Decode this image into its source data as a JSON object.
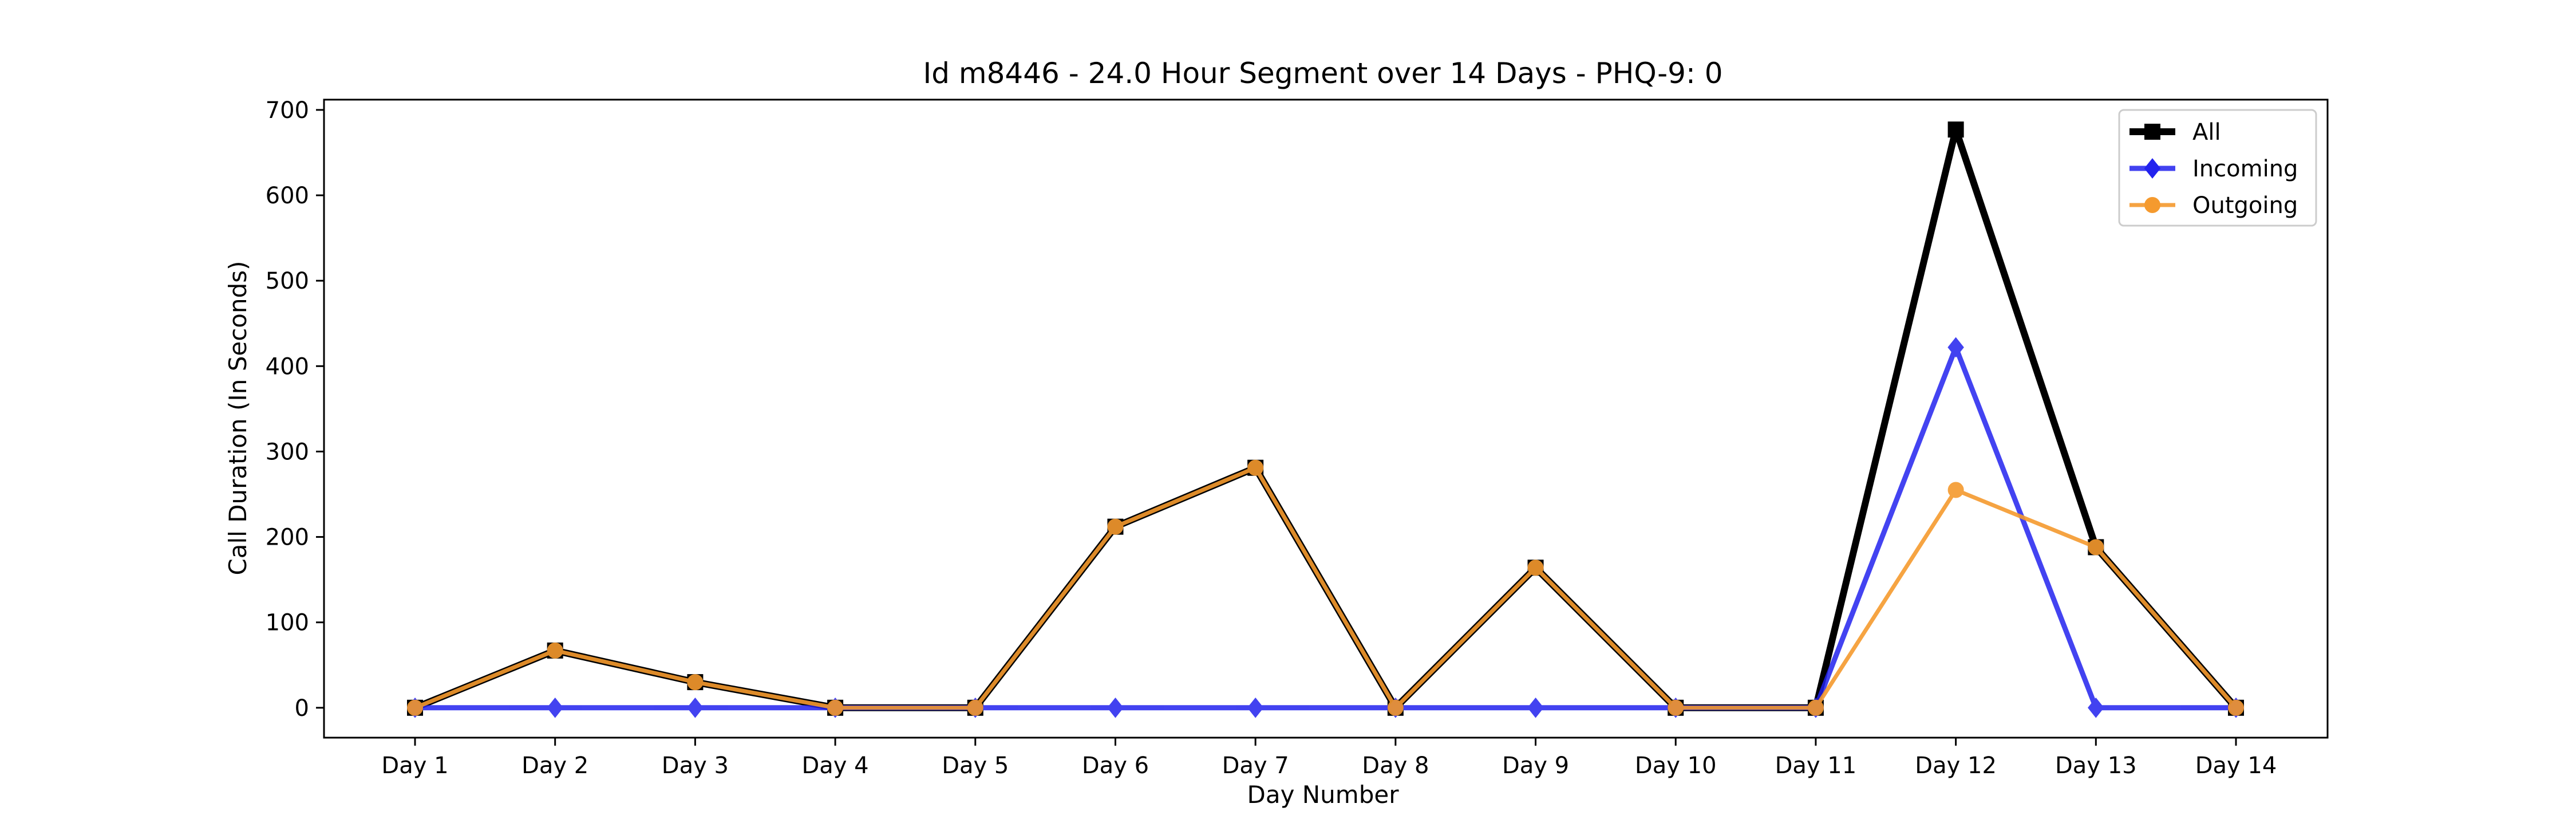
{
  "chart_data": {
    "type": "line",
    "title": "Id m8446 - 24.0 Hour Segment over 14 Days - PHQ-9: 0",
    "xlabel": "Day Number",
    "ylabel": "Call Duration (In Seconds)",
    "categories": [
      "Day 1",
      "Day 2",
      "Day 3",
      "Day 4",
      "Day 5",
      "Day 6",
      "Day 7",
      "Day 8",
      "Day 9",
      "Day 10",
      "Day 11",
      "Day 12",
      "Day 13",
      "Day 14"
    ],
    "ylim": [
      -35,
      712
    ],
    "yticks": [
      0,
      100,
      200,
      300,
      400,
      500,
      600,
      700
    ],
    "grid": false,
    "legend_position": "top-right",
    "series": [
      {
        "name": "All",
        "color": "#000000",
        "marker": "square",
        "values": [
          0,
          67,
          30,
          0,
          0,
          212,
          281,
          0,
          164,
          0,
          0,
          677,
          188,
          0
        ]
      },
      {
        "name": "Incoming",
        "color": "#2222ee",
        "marker": "diamond",
        "values": [
          0,
          0,
          0,
          0,
          0,
          0,
          0,
          0,
          0,
          0,
          0,
          422,
          0,
          0
        ]
      },
      {
        "name": "Outgoing",
        "color": "#f59a2e",
        "marker": "circle",
        "values": [
          0,
          67,
          30,
          0,
          0,
          212,
          281,
          0,
          164,
          0,
          0,
          255,
          188,
          0
        ]
      }
    ]
  }
}
